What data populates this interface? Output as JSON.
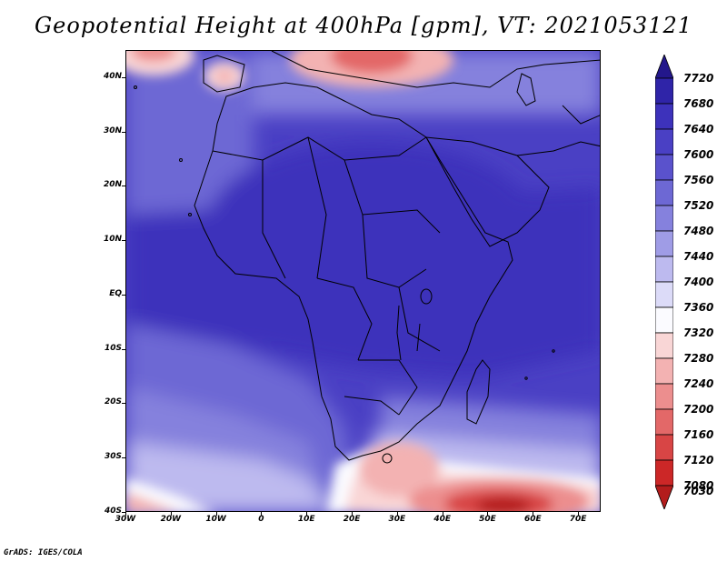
{
  "title": "Geopotential Height at 400hPa [gpm], VT: 2021053121",
  "credit": "GrADS: IGES/COLA",
  "map": {
    "lon_range": [
      -30,
      75
    ],
    "lat_range": [
      -40,
      45
    ],
    "lat_labels": [
      {
        "text": "40N",
        "lat": 40
      },
      {
        "text": "30N",
        "lat": 30
      },
      {
        "text": "20N",
        "lat": 20
      },
      {
        "text": "10N",
        "lat": 10
      },
      {
        "text": "EQ",
        "lat": 0
      },
      {
        "text": "10S",
        "lat": -10
      },
      {
        "text": "20S",
        "lat": -20
      },
      {
        "text": "30S",
        "lat": -30
      },
      {
        "text": "40S",
        "lat": -40
      }
    ],
    "lon_labels": [
      {
        "text": "30W",
        "lon": -30
      },
      {
        "text": "20W",
        "lon": -20
      },
      {
        "text": "10W",
        "lon": -10
      },
      {
        "text": "0",
        "lon": 0
      },
      {
        "text": "10E",
        "lon": 10
      },
      {
        "text": "20E",
        "lon": 20
      },
      {
        "text": "30E",
        "lon": 30
      },
      {
        "text": "40E",
        "lon": 40
      },
      {
        "text": "50E",
        "lon": 50
      },
      {
        "text": "60E",
        "lon": 60
      },
      {
        "text": "70E",
        "lon": 70
      }
    ],
    "field_features": [
      {
        "name": "low-mediterranean",
        "lon": 27,
        "lat": 44,
        "value": 7280
      },
      {
        "name": "low-iberia",
        "lon": -8,
        "lat": 41,
        "value": 7360
      },
      {
        "name": "low-north-atlantic-corner",
        "lon": -27,
        "lat": 45,
        "value": 7280
      },
      {
        "name": "low-south-indian-ocean",
        "lon": 52,
        "lat": -38,
        "value": 7160
      },
      {
        "name": "low-south-africa",
        "lon": 27,
        "lat": -32,
        "value": 7280
      },
      {
        "name": "low-south-atlantic",
        "lon": -30,
        "lat": -40,
        "value": 7200
      }
    ]
  },
  "colorbar": {
    "levels": [
      "7720",
      "7680",
      "7640",
      "7600",
      "7560",
      "7520",
      "7480",
      "7440",
      "7400",
      "7360",
      "7320",
      "7280",
      "7240",
      "7200",
      "7160",
      "7120",
      "7080",
      "7030"
    ],
    "colors": [
      "#23178b",
      "#2f24a8",
      "#3d32bb",
      "#4a40c4",
      "#5a52cc",
      "#6d68d4",
      "#8581dd",
      "#9f9ce6",
      "#bdbaef",
      "#dcdbf8",
      "#fbfbff",
      "#f9d6d6",
      "#f3b2b2",
      "#ec8e8e",
      "#e36868",
      "#d84545",
      "#cc2727",
      "#b31c1c"
    ]
  }
}
